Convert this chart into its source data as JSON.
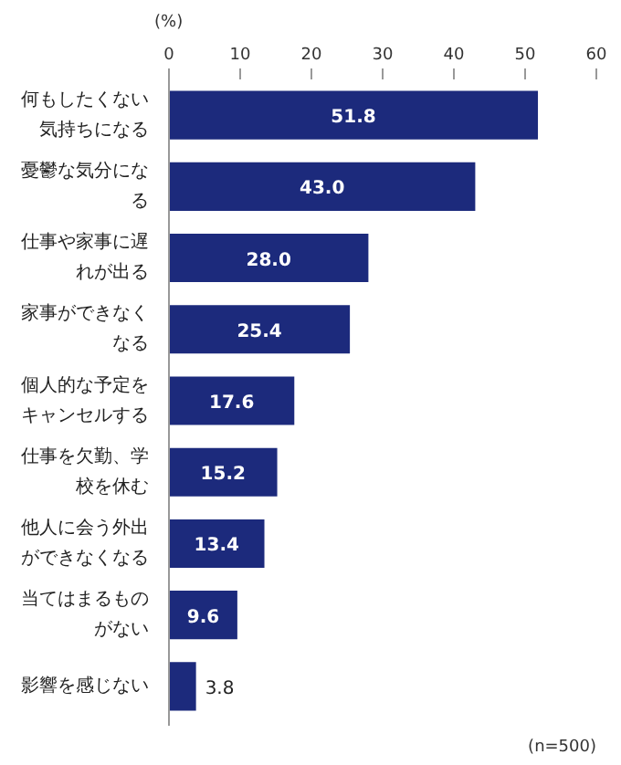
{
  "chart_data": {
    "type": "bar",
    "orientation": "horizontal",
    "xlabel": "(%)",
    "categories": [
      "何もしたくない気持ちになる",
      "憂鬱な気分になる",
      "仕事や家事に遅れが出る",
      "家事ができなくなる",
      "個人的な予定をキャンセルする",
      "仕事を欠勤、学校を休む",
      "他人に会う外出ができなくなる",
      "当てはまるものがない",
      "影響を感じない"
    ],
    "values": [
      51.8,
      43.0,
      28.0,
      25.4,
      17.6,
      15.2,
      13.4,
      9.6,
      3.8
    ],
    "value_labels": [
      "51.8",
      "43.0",
      "28.0",
      "25.4",
      "17.6",
      "15.2",
      "13.4",
      "9.6",
      "3.8"
    ],
    "color": "#1c2a7c",
    "xlim": [
      0,
      60
    ],
    "xticks": [
      0,
      10,
      20,
      30,
      40,
      50,
      60
    ],
    "grid": false,
    "annotations": [
      "(n=500)"
    ]
  }
}
